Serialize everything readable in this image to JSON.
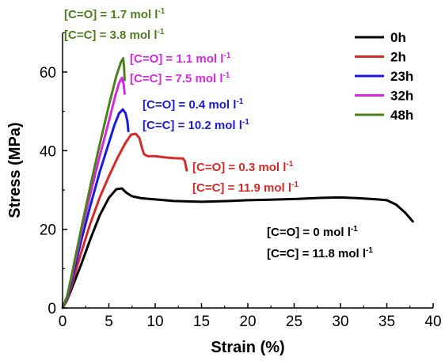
{
  "chart_data": {
    "type": "line",
    "title": "",
    "xlabel": "Strain (%)",
    "ylabel": "Stress (MPa)",
    "xlim": [
      0,
      40
    ],
    "ylim": [
      0,
      70
    ],
    "xticks": [
      "0",
      "5",
      "10",
      "15",
      "20",
      "25",
      "30",
      "35",
      "40"
    ],
    "yticks": [
      "0",
      "20",
      "40",
      "60"
    ],
    "grid": false,
    "legend_position": "top-right",
    "series": [
      {
        "name": "0h",
        "color": "#000000",
        "points": [
          [
            0,
            0
          ],
          [
            0.5,
            2
          ],
          [
            1,
            5
          ],
          [
            2,
            11
          ],
          [
            3,
            17.5
          ],
          [
            4,
            23.5
          ],
          [
            5,
            28
          ],
          [
            5.8,
            30.2
          ],
          [
            6.4,
            30.4
          ],
          [
            6.9,
            29.3
          ],
          [
            7.5,
            28.4
          ],
          [
            8.5,
            27.9
          ],
          [
            10,
            27.6
          ],
          [
            12,
            27.2
          ],
          [
            15,
            27.0
          ],
          [
            18,
            27.2
          ],
          [
            20,
            27.4
          ],
          [
            22,
            27.5
          ],
          [
            25,
            27.7
          ],
          [
            28,
            28.0
          ],
          [
            30,
            28.1
          ],
          [
            32,
            27.9
          ],
          [
            34,
            27.6
          ],
          [
            35,
            27.4
          ],
          [
            36,
            26.3
          ],
          [
            37,
            24.2
          ],
          [
            37.8,
            22.0
          ]
        ]
      },
      {
        "name": "2h",
        "color": "#d42a2a",
        "points": [
          [
            0,
            0
          ],
          [
            0.5,
            2
          ],
          [
            1,
            6
          ],
          [
            2,
            14
          ],
          [
            3,
            21.5
          ],
          [
            4,
            28
          ],
          [
            5,
            33.5
          ],
          [
            6,
            38.5
          ],
          [
            6.8,
            42
          ],
          [
            7.4,
            44.1
          ],
          [
            7.9,
            44.3
          ],
          [
            8.3,
            43.2
          ],
          [
            8.6,
            40.5
          ],
          [
            8.8,
            39.1
          ],
          [
            9.2,
            38.6
          ],
          [
            10,
            38.6
          ],
          [
            11,
            38.3
          ],
          [
            12,
            38.1
          ],
          [
            13,
            38.0
          ],
          [
            13.2,
            37.4
          ],
          [
            13.4,
            35.0
          ]
        ]
      },
      {
        "name": "23h",
        "color": "#1a1adc",
        "points": [
          [
            0,
            0
          ],
          [
            0.5,
            2.5
          ],
          [
            1,
            7
          ],
          [
            2,
            17
          ],
          [
            3,
            26
          ],
          [
            4,
            34.5
          ],
          [
            5,
            42
          ],
          [
            5.6,
            46.5
          ],
          [
            6.1,
            49.5
          ],
          [
            6.5,
            50.5
          ],
          [
            6.8,
            49.5
          ],
          [
            7.0,
            47.5
          ],
          [
            7.1,
            45.0
          ]
        ]
      },
      {
        "name": "32h",
        "color": "#d429dd",
        "points": [
          [
            0,
            0
          ],
          [
            0.5,
            3
          ],
          [
            1,
            8
          ],
          [
            2,
            19
          ],
          [
            3,
            29
          ],
          [
            4,
            38.5
          ],
          [
            5,
            47.5
          ],
          [
            5.7,
            54
          ],
          [
            6.1,
            57.2
          ],
          [
            6.4,
            58.5
          ],
          [
            6.6,
            57.0
          ],
          [
            6.7,
            54.5
          ]
        ]
      },
      {
        "name": "48h",
        "color": "#4d7f1f",
        "points": [
          [
            0,
            0
          ],
          [
            0.5,
            3
          ],
          [
            1,
            8.5
          ],
          [
            2,
            20
          ],
          [
            3,
            31
          ],
          [
            4,
            41.5
          ],
          [
            5,
            51.5
          ],
          [
            5.8,
            59
          ],
          [
            6.3,
            62.5
          ],
          [
            6.55,
            63.5
          ],
          [
            6.65,
            61.0
          ],
          [
            6.7,
            58.0
          ]
        ]
      }
    ],
    "annotations": [
      {
        "text": "[C=O] = 1.7 mol l",
        "sup": "-1",
        "color": "#4d7f1f"
      },
      {
        "text": "[C=C] = 3.8 mol l",
        "sup": "-1",
        "color": "#4d7f1f"
      },
      {
        "text": "[C=O] = 1.1 mol l",
        "sup": "-1",
        "color": "#d429dd"
      },
      {
        "text": "[C=C] = 7.5 mol l",
        "sup": "-1",
        "color": "#d429dd"
      },
      {
        "text": "[C=O] = 0.4 mol l",
        "sup": "-1",
        "color": "#1a1adc"
      },
      {
        "text": "[C=C] = 10.2 mol l",
        "sup": "-1",
        "color": "#1a1adc"
      },
      {
        "text": "[C=O] = 0.3 mol l",
        "sup": "-1",
        "color": "#d42a2a"
      },
      {
        "text": "[C=C] = 11.9 mol l",
        "sup": "-1",
        "color": "#d42a2a"
      },
      {
        "text": "[C=O] = 0 mol l",
        "sup": "-1",
        "color": "#000000"
      },
      {
        "text": "[C=C] = 11.8 mol l",
        "sup": "-1",
        "color": "#000000"
      }
    ]
  }
}
